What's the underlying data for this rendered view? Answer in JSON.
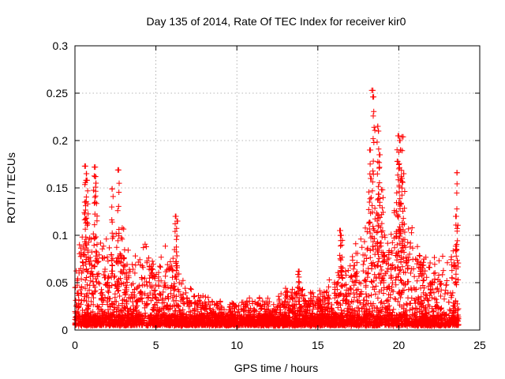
{
  "chart_data": {
    "type": "scatter",
    "title": "Day 135 of 2014, Rate Of TEC Index for receiver kir0",
    "xlabel": "GPS time / hours",
    "ylabel": "ROTI / TECUs",
    "xlim": [
      0,
      25
    ],
    "ylim": [
      0,
      0.3
    ],
    "xticks": [
      0,
      5,
      10,
      15,
      20,
      25
    ],
    "yticks": [
      0,
      0.05,
      0.1,
      0.15,
      0.2,
      0.25,
      0.3
    ],
    "xtick_labels": [
      "0",
      "5",
      "10",
      "15",
      "20",
      "25"
    ],
    "ytick_labels": [
      "0",
      "0.05",
      "0.1",
      "0.15",
      "0.2",
      "0.25",
      "0.3"
    ],
    "grid": true,
    "marker": "+",
    "color": "#ff0000",
    "series": [
      {
        "name": "ROTI",
        "x_range": [
          0,
          23.7
        ],
        "envelope_hours": [
          0,
          0.5,
          1,
          1.5,
          2,
          2.5,
          3,
          3.5,
          4,
          4.5,
          5,
          5.5,
          6,
          6.5,
          7,
          7.5,
          8,
          8.5,
          9,
          9.5,
          10,
          10.5,
          11,
          11.5,
          12,
          12.5,
          13,
          13.5,
          14,
          14.5,
          15,
          15.5,
          16,
          16.5,
          17,
          17.5,
          18,
          18.5,
          19,
          19.5,
          20,
          20.5,
          21,
          21.5,
          22,
          22.5,
          23,
          23.5
        ],
        "envelope_values": [
          0.08,
          0.11,
          0.12,
          0.09,
          0.11,
          0.12,
          0.11,
          0.08,
          0.09,
          0.1,
          0.07,
          0.09,
          0.1,
          0.06,
          0.05,
          0.04,
          0.04,
          0.035,
          0.035,
          0.03,
          0.03,
          0.035,
          0.04,
          0.035,
          0.035,
          0.04,
          0.045,
          0.05,
          0.05,
          0.045,
          0.045,
          0.05,
          0.06,
          0.08,
          0.08,
          0.1,
          0.14,
          0.15,
          0.14,
          0.13,
          0.15,
          0.12,
          0.11,
          0.08,
          0.09,
          0.1,
          0.1,
          0.1
        ],
        "peaks": [
          {
            "x": 0.65,
            "y": 0.173
          },
          {
            "x": 0.7,
            "y": 0.165
          },
          {
            "x": 0.75,
            "y": 0.158
          },
          {
            "x": 1.2,
            "y": 0.172
          },
          {
            "x": 1.25,
            "y": 0.162
          },
          {
            "x": 1.3,
            "y": 0.155
          },
          {
            "x": 2.7,
            "y": 0.169
          },
          {
            "x": 2.3,
            "y": 0.149
          },
          {
            "x": 0.6,
            "y": 0.135
          },
          {
            "x": 6.2,
            "y": 0.12
          },
          {
            "x": 6.3,
            "y": 0.115
          },
          {
            "x": 18.4,
            "y": 0.253
          },
          {
            "x": 18.45,
            "y": 0.246
          },
          {
            "x": 18.7,
            "y": 0.215
          },
          {
            "x": 18.75,
            "y": 0.21
          },
          {
            "x": 18.2,
            "y": 0.19
          },
          {
            "x": 18.8,
            "y": 0.185
          },
          {
            "x": 19.95,
            "y": 0.205
          },
          {
            "x": 20.05,
            "y": 0.2
          },
          {
            "x": 20.2,
            "y": 0.204
          },
          {
            "x": 20.1,
            "y": 0.19
          },
          {
            "x": 19.9,
            "y": 0.178
          },
          {
            "x": 20.3,
            "y": 0.165
          },
          {
            "x": 20.15,
            "y": 0.16
          },
          {
            "x": 23.6,
            "y": 0.166
          },
          {
            "x": 23.55,
            "y": 0.12
          },
          {
            "x": 18.3,
            "y": 0.16
          },
          {
            "x": 19.0,
            "y": 0.148
          },
          {
            "x": 16.4,
            "y": 0.105
          },
          {
            "x": 16.45,
            "y": 0.1
          },
          {
            "x": 13.8,
            "y": 0.062
          }
        ],
        "baseline_y": 0.005,
        "point_count": 3200
      }
    ]
  }
}
